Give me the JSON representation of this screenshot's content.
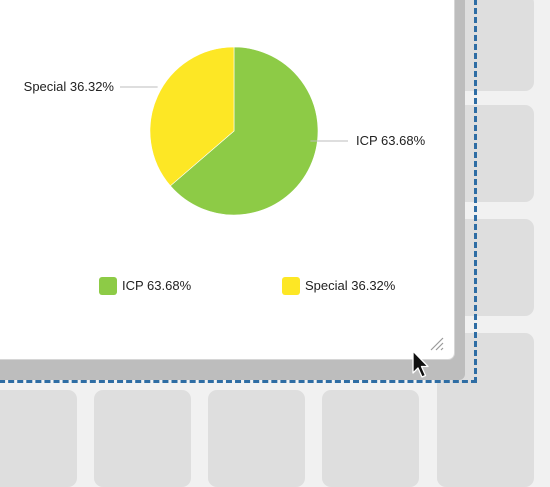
{
  "chart_data": {
    "type": "pie",
    "slices": [
      {
        "name": "ICP",
        "value": 63.68,
        "label": "ICP 63.68%",
        "color": "#8dcb46"
      },
      {
        "name": "Special",
        "value": 36.32,
        "label": "Special 36.32%",
        "color": "#fde725"
      }
    ],
    "legend_position": "bottom"
  },
  "legend": {
    "items": [
      {
        "label": "ICP 63.68%",
        "color": "#8dcb46"
      },
      {
        "label": "Special 36.32%",
        "color": "#fde725"
      }
    ]
  },
  "colors": {
    "selection_outline": "#2e6da4",
    "card_background": "#ffffff",
    "canvas_background": "#f1f1f1",
    "tile": "#dedede"
  },
  "icons": {
    "resize_handle": "resize-handle-icon",
    "cursor": "mouse-pointer-icon"
  }
}
